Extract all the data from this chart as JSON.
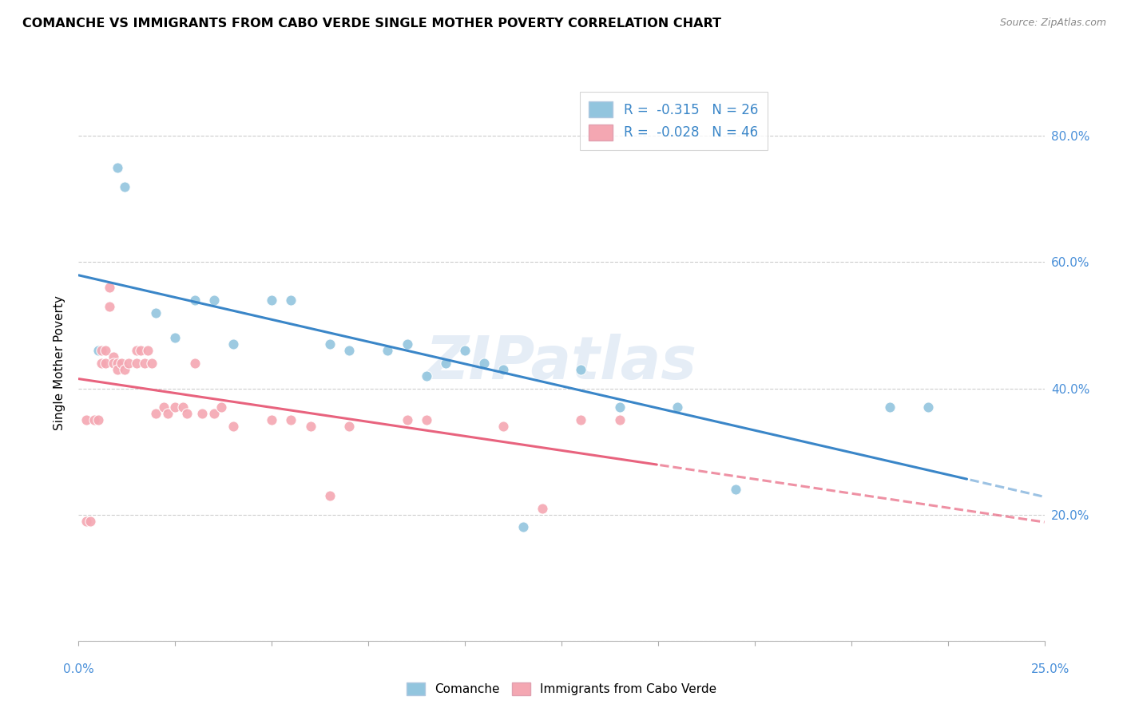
{
  "title": "COMANCHE VS IMMIGRANTS FROM CABO VERDE SINGLE MOTHER POVERTY CORRELATION CHART",
  "source": "Source: ZipAtlas.com",
  "ylabel": "Single Mother Poverty",
  "xlim": [
    0.0,
    0.25
  ],
  "ylim": [
    0.0,
    0.88
  ],
  "yticks": [
    0.0,
    0.2,
    0.4,
    0.6,
    0.8
  ],
  "ytick_labels": [
    "",
    "20.0%",
    "40.0%",
    "60.0%",
    "80.0%"
  ],
  "xtick_vals": [
    0.0,
    0.025,
    0.05,
    0.075,
    0.1,
    0.125,
    0.15,
    0.175,
    0.2,
    0.225,
    0.25
  ],
  "legend_r1": "-0.315",
  "legend_n1": "26",
  "legend_r2": "-0.028",
  "legend_n2": "46",
  "color_blue": "#92c5de",
  "color_pink": "#f4a7b2",
  "color_blue_line": "#3a86c8",
  "color_pink_line": "#e8637e",
  "watermark": "ZIPatlas",
  "comanche_x": [
    0.005,
    0.01,
    0.012,
    0.02,
    0.025,
    0.03,
    0.035,
    0.04,
    0.05,
    0.055,
    0.065,
    0.07,
    0.08,
    0.085,
    0.09,
    0.095,
    0.1,
    0.105,
    0.11,
    0.115,
    0.13,
    0.14,
    0.155,
    0.17,
    0.21,
    0.22
  ],
  "comanche_y": [
    0.46,
    0.75,
    0.72,
    0.52,
    0.48,
    0.54,
    0.54,
    0.47,
    0.54,
    0.54,
    0.47,
    0.46,
    0.46,
    0.47,
    0.42,
    0.44,
    0.46,
    0.44,
    0.43,
    0.18,
    0.43,
    0.37,
    0.37,
    0.24,
    0.37,
    0.37
  ],
  "cabo_verde_x": [
    0.002,
    0.002,
    0.003,
    0.004,
    0.005,
    0.006,
    0.006,
    0.007,
    0.007,
    0.008,
    0.008,
    0.009,
    0.009,
    0.01,
    0.01,
    0.011,
    0.012,
    0.013,
    0.015,
    0.015,
    0.016,
    0.017,
    0.018,
    0.019,
    0.02,
    0.022,
    0.023,
    0.025,
    0.027,
    0.028,
    0.03,
    0.032,
    0.035,
    0.037,
    0.04,
    0.05,
    0.055,
    0.06,
    0.065,
    0.07,
    0.085,
    0.09,
    0.11,
    0.12,
    0.13,
    0.14
  ],
  "cabo_verde_y": [
    0.35,
    0.19,
    0.19,
    0.35,
    0.35,
    0.46,
    0.44,
    0.46,
    0.44,
    0.56,
    0.53,
    0.45,
    0.44,
    0.44,
    0.43,
    0.44,
    0.43,
    0.44,
    0.46,
    0.44,
    0.46,
    0.44,
    0.46,
    0.44,
    0.36,
    0.37,
    0.36,
    0.37,
    0.37,
    0.36,
    0.44,
    0.36,
    0.36,
    0.37,
    0.34,
    0.35,
    0.35,
    0.34,
    0.23,
    0.34,
    0.35,
    0.35,
    0.34,
    0.21,
    0.35,
    0.35
  ]
}
